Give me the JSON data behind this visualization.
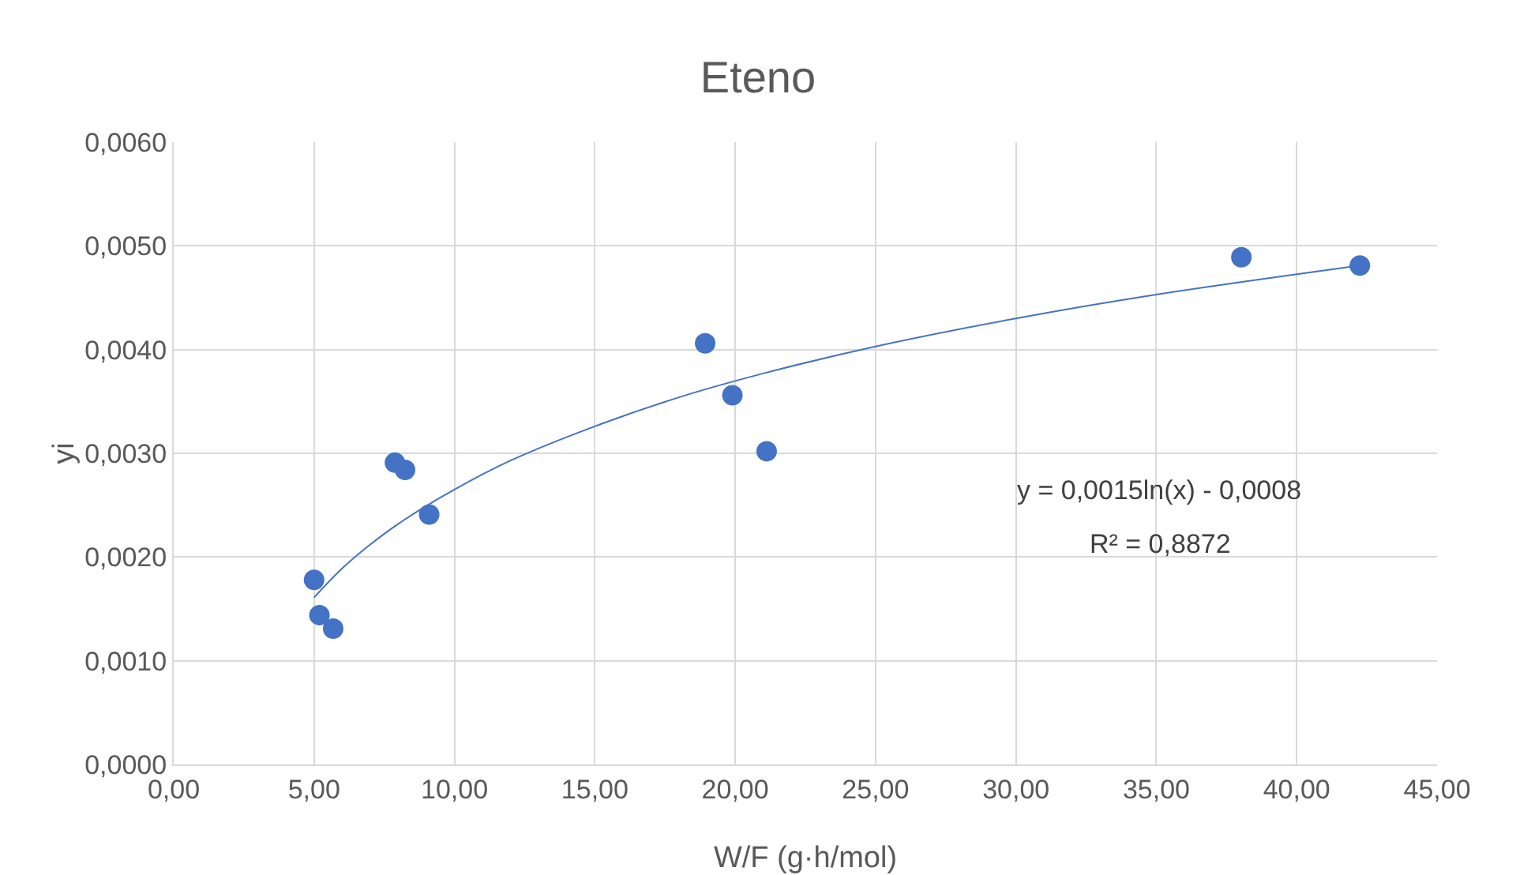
{
  "chart_data": {
    "type": "scatter",
    "title": "Eteno",
    "xlabel": "W/F (g·h/mol)",
    "ylabel": "yi",
    "series": [
      {
        "color": "#4472c4",
        "marker": "circle",
        "x": [
          5.0,
          5.19,
          5.68,
          7.88,
          8.24,
          9.1,
          18.93,
          19.9,
          21.12,
          38.03,
          42.25
        ],
        "values": [
          0.00178,
          0.00144,
          0.00131,
          0.00291,
          0.00284,
          0.00241,
          0.00406,
          0.00356,
          0.00302,
          0.00489,
          0.00481
        ]
      },
      {
        "type": "line",
        "color": "#4472c4",
        "marker": "none",
        "x": [
          5,
          6,
          7,
          8,
          10,
          12,
          15,
          18,
          21,
          25,
          30,
          35,
          42.25
        ],
        "values": [
          0.00161,
          0.00189,
          0.00212,
          0.00232,
          0.00265,
          0.00293,
          0.00326,
          0.00354,
          0.00377,
          0.00403,
          0.0043,
          0.00453,
          0.00481
        ]
      }
    ],
    "annotations": [
      "y = 0,0015ln(x) - 0,0008",
      "R² = 0,8872"
    ],
    "xlim": [
      0,
      45
    ],
    "xticks": [
      {
        "value": 0,
        "label": "0,00"
      },
      {
        "value": 5,
        "label": "5,00"
      },
      {
        "value": 10,
        "label": "10,00"
      },
      {
        "value": 15,
        "label": "15,00"
      },
      {
        "value": 20,
        "label": "20,00"
      },
      {
        "value": 25,
        "label": "25,00"
      },
      {
        "value": 30,
        "label": "30,00"
      },
      {
        "value": 35,
        "label": "35,00"
      },
      {
        "value": 40,
        "label": "40,00"
      },
      {
        "value": 45,
        "label": "45,00"
      }
    ],
    "ylim": [
      0,
      0.006
    ],
    "yticks": [
      {
        "value": 0,
        "label": "0,0000"
      },
      {
        "value": 0.001,
        "label": "0,0010"
      },
      {
        "value": 0.002,
        "label": "0,0020"
      },
      {
        "value": 0.003,
        "label": "0,0030"
      },
      {
        "value": 0.004,
        "label": "0,0040"
      },
      {
        "value": 0.005,
        "label": "0,0050"
      },
      {
        "value": 0.006,
        "label": "0,0060"
      }
    ],
    "grid": true
  }
}
